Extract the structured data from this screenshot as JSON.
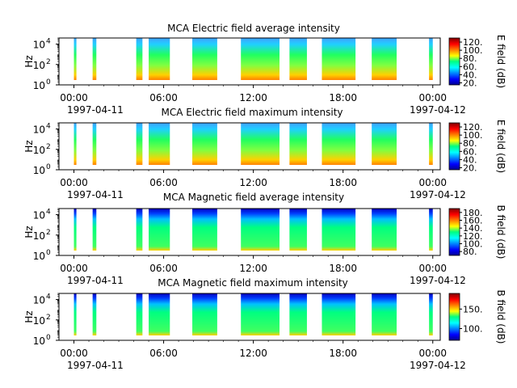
{
  "chart_data": [
    {
      "type": "heatmap",
      "title": "MCA  Electric field average intensity",
      "ylabel": "Hz",
      "yscale": "log",
      "ylim": [
        1,
        40000
      ],
      "y_ticks": [
        "10",
        "10",
        "10"
      ],
      "y_tick_exponents": [
        "0",
        "2",
        "4"
      ],
      "x_ticks": [
        "00:00",
        "06:00",
        "12:00",
        "18:00",
        "00:00"
      ],
      "x_dates": [
        "1997-04-11",
        "1997-04-12"
      ],
      "xlim": [
        "1997-04-10T23:00",
        "1997-04-12T00:30"
      ],
      "colorbar": {
        "label": "E field (dB)",
        "ticks": [
          "20.",
          "40.",
          "60.",
          "80.",
          "100.",
          "120."
        ],
        "range": [
          15,
          130
        ],
        "colormap": "jet"
      },
      "data_intervals": [
        [
          "1997-04-11T00:00",
          "1997-04-11T00:10"
        ],
        [
          "1997-04-11T01:15",
          "1997-04-11T01:30"
        ],
        [
          "1997-04-11T04:10",
          "1997-04-11T04:35"
        ],
        [
          "1997-04-11T05:00",
          "1997-04-11T06:25"
        ],
        [
          "1997-04-11T07:55",
          "1997-04-11T09:35"
        ],
        [
          "1997-04-11T11:10",
          "1997-04-11T13:45"
        ],
        [
          "1997-04-11T14:25",
          "1997-04-11T15:35"
        ],
        [
          "1997-04-11T16:35",
          "1997-04-11T18:50"
        ],
        [
          "1997-04-11T19:55",
          "1997-04-11T21:35"
        ],
        [
          "1997-04-11T23:45",
          "1997-04-12T00:00"
        ]
      ]
    },
    {
      "type": "heatmap",
      "title": "MCA  Electric field maximum intensity",
      "ylabel": "Hz",
      "yscale": "log",
      "ylim": [
        1,
        40000
      ],
      "y_ticks": [
        "10",
        "10",
        "10"
      ],
      "y_tick_exponents": [
        "0",
        "2",
        "4"
      ],
      "x_ticks": [
        "00:00",
        "06:00",
        "12:00",
        "18:00",
        "00:00"
      ],
      "x_dates": [
        "1997-04-11",
        "1997-04-12"
      ],
      "xlim": [
        "1997-04-10T23:00",
        "1997-04-12T00:30"
      ],
      "colorbar": {
        "label": "E field (dB)",
        "ticks": [
          "20.",
          "40.",
          "60.",
          "80.",
          "100.",
          "120."
        ],
        "range": [
          15,
          130
        ],
        "colormap": "jet"
      },
      "data_intervals": [
        [
          "1997-04-11T00:00",
          "1997-04-11T00:10"
        ],
        [
          "1997-04-11T01:15",
          "1997-04-11T01:30"
        ],
        [
          "1997-04-11T04:10",
          "1997-04-11T04:35"
        ],
        [
          "1997-04-11T05:00",
          "1997-04-11T06:25"
        ],
        [
          "1997-04-11T07:55",
          "1997-04-11T09:35"
        ],
        [
          "1997-04-11T11:10",
          "1997-04-11T13:45"
        ],
        [
          "1997-04-11T14:25",
          "1997-04-11T15:35"
        ],
        [
          "1997-04-11T16:35",
          "1997-04-11T18:50"
        ],
        [
          "1997-04-11T19:55",
          "1997-04-11T21:35"
        ],
        [
          "1997-04-11T23:45",
          "1997-04-12T00:00"
        ]
      ]
    },
    {
      "type": "heatmap",
      "title": "MCA  Magnetic field average intensity",
      "ylabel": "Hz",
      "yscale": "log",
      "ylim": [
        1,
        40000
      ],
      "y_ticks": [
        "10",
        "10",
        "10"
      ],
      "y_tick_exponents": [
        "0",
        "2",
        "4"
      ],
      "x_ticks": [
        "00:00",
        "06:00",
        "12:00",
        "18:00",
        "00:00"
      ],
      "x_dates": [
        "1997-04-11",
        "1997-04-12"
      ],
      "xlim": [
        "1997-04-10T23:00",
        "1997-04-12T00:30"
      ],
      "colorbar": {
        "label": "B field (dB)",
        "ticks": [
          "80.",
          "100.",
          "120.",
          "140.",
          "160.",
          "180."
        ],
        "range": [
          70,
          190
        ],
        "colormap": "jet"
      },
      "data_intervals": [
        [
          "1997-04-11T00:00",
          "1997-04-11T00:10"
        ],
        [
          "1997-04-11T01:15",
          "1997-04-11T01:30"
        ],
        [
          "1997-04-11T04:10",
          "1997-04-11T04:35"
        ],
        [
          "1997-04-11T05:00",
          "1997-04-11T06:25"
        ],
        [
          "1997-04-11T07:55",
          "1997-04-11T09:35"
        ],
        [
          "1997-04-11T11:10",
          "1997-04-11T13:45"
        ],
        [
          "1997-04-11T14:25",
          "1997-04-11T15:35"
        ],
        [
          "1997-04-11T16:35",
          "1997-04-11T18:50"
        ],
        [
          "1997-04-11T19:55",
          "1997-04-11T21:35"
        ],
        [
          "1997-04-11T23:45",
          "1997-04-12T00:00"
        ]
      ]
    },
    {
      "type": "heatmap",
      "title": "MCA  Magnetic field maximum intensity",
      "ylabel": "Hz",
      "yscale": "log",
      "ylim": [
        1,
        40000
      ],
      "y_ticks": [
        "10",
        "10",
        "10"
      ],
      "y_tick_exponents": [
        "0",
        "2",
        "4"
      ],
      "x_ticks": [
        "00:00",
        "06:00",
        "12:00",
        "18:00",
        "00:00"
      ],
      "x_dates": [
        "1997-04-11",
        "1997-04-12"
      ],
      "xlim": [
        "1997-04-10T23:00",
        "1997-04-12T00:30"
      ],
      "colorbar": {
        "label": "B field (dB)",
        "ticks": [
          "100.",
          "150."
        ],
        "range": [
          70,
          190
        ],
        "colormap": "jet"
      },
      "data_intervals": [
        [
          "1997-04-11T00:00",
          "1997-04-11T00:10"
        ],
        [
          "1997-04-11T01:15",
          "1997-04-11T01:30"
        ],
        [
          "1997-04-11T04:10",
          "1997-04-11T04:35"
        ],
        [
          "1997-04-11T05:00",
          "1997-04-11T06:25"
        ],
        [
          "1997-04-11T07:55",
          "1997-04-11T09:35"
        ],
        [
          "1997-04-11T11:10",
          "1997-04-11T13:45"
        ],
        [
          "1997-04-11T14:25",
          "1997-04-11T15:35"
        ],
        [
          "1997-04-11T16:35",
          "1997-04-11T18:50"
        ],
        [
          "1997-04-11T19:55",
          "1997-04-11T21:35"
        ],
        [
          "1997-04-11T23:45",
          "1997-04-12T00:00"
        ]
      ]
    }
  ]
}
